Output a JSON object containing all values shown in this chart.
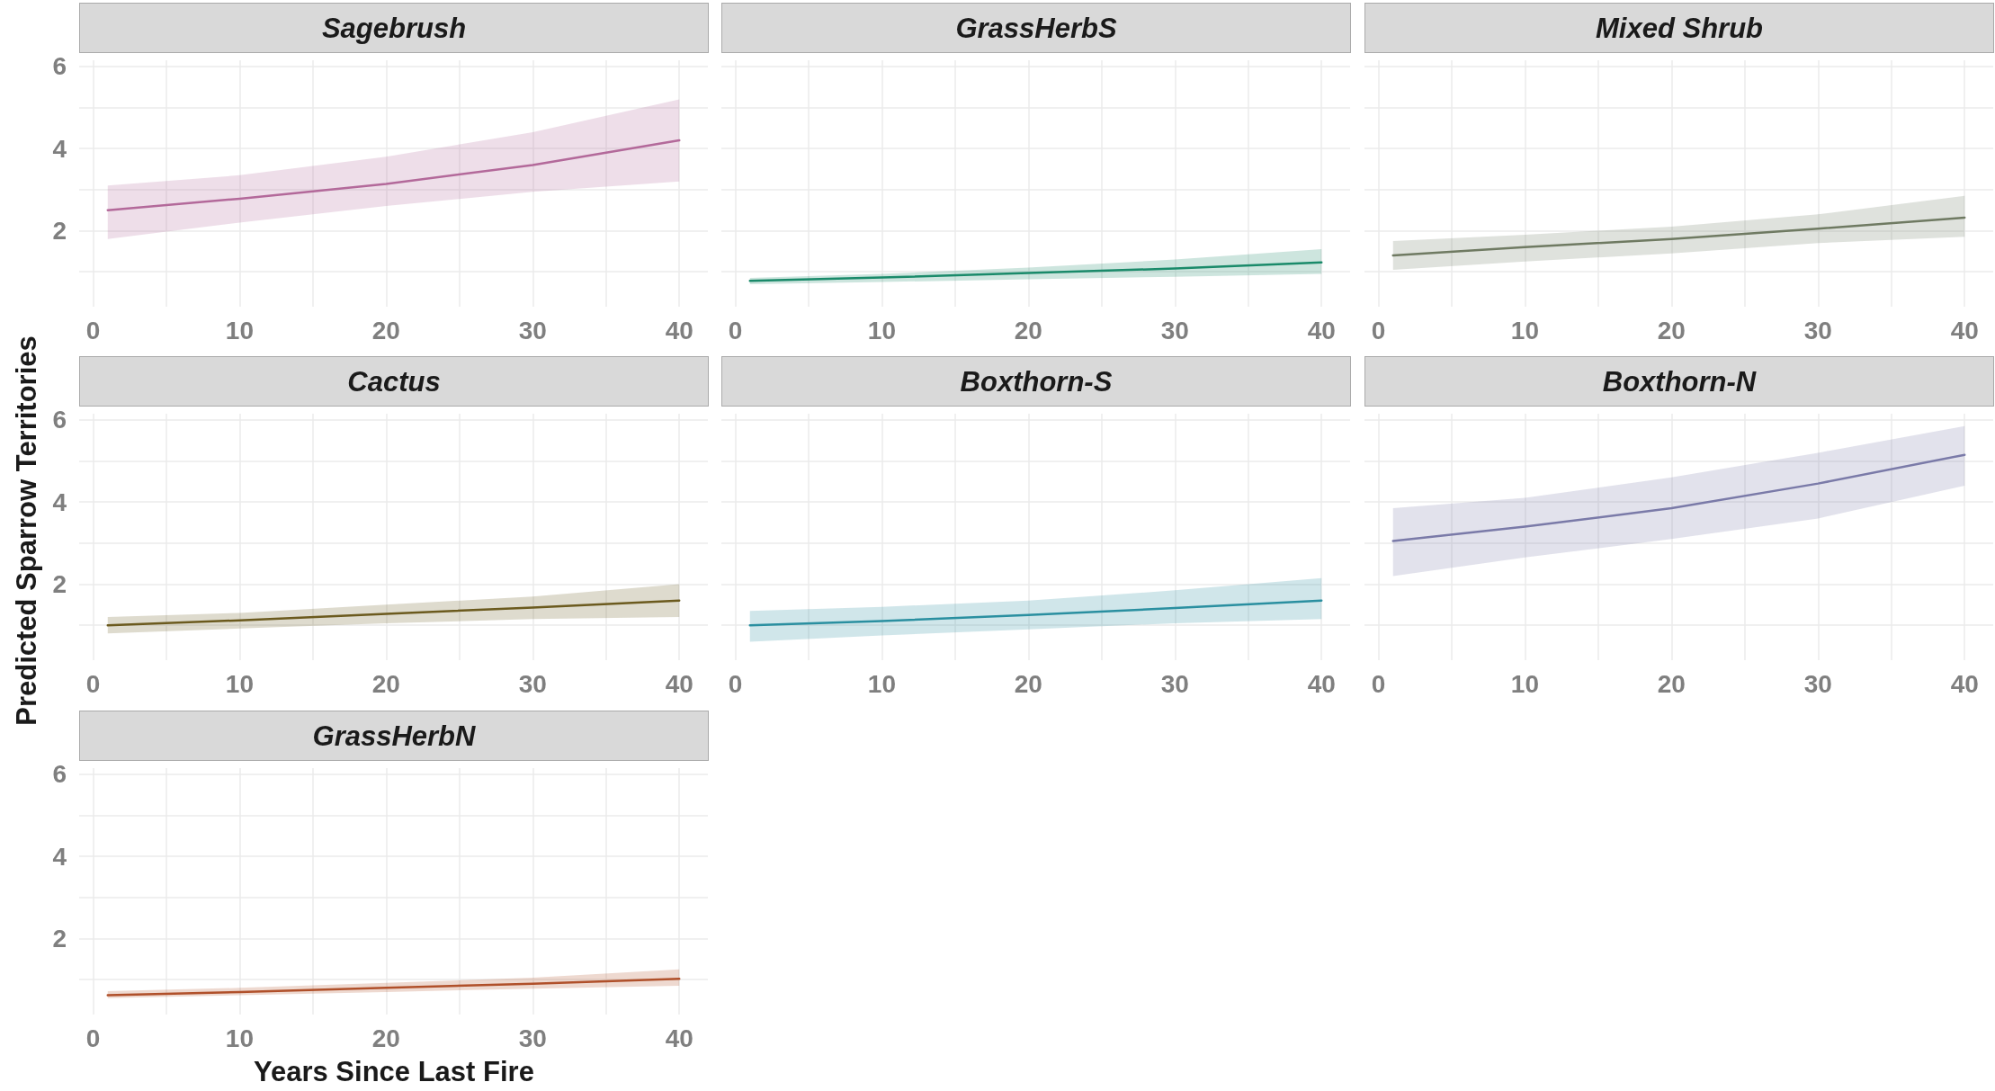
{
  "chart_data": [
    {
      "type": "line",
      "title": "Sagebrush",
      "x": [
        1,
        10,
        20,
        30,
        40
      ],
      "xlim": [
        -0.95,
        41.95
      ],
      "ylim": [
        0.15,
        6.15
      ],
      "xticks": [
        0,
        {
          "value": 5,
          "label": null
        },
        10,
        {
          "value": 15,
          "label": null
        },
        20,
        {
          "value": 25,
          "label": null
        },
        30,
        {
          "value": 35,
          "label": null
        },
        40
      ],
      "yticks": [
        {
          "value": 1,
          "label": null
        },
        2,
        {
          "value": 3,
          "label": null
        },
        4,
        {
          "value": 5,
          "label": null
        },
        6
      ],
      "grid": true,
      "marker": "none",
      "series": [
        {
          "color": "#b3699a",
          "values": [
            2.5,
            2.78,
            3.14,
            3.6,
            4.2
          ],
          "lower": [
            1.8,
            2.2,
            2.6,
            2.95,
            3.2
          ],
          "upper": [
            3.1,
            3.35,
            3.8,
            4.4,
            5.2
          ]
        }
      ]
    },
    {
      "type": "line",
      "title": "GrassHerbS",
      "x": [
        1,
        10,
        20,
        30,
        40
      ],
      "xlim": [
        -0.95,
        41.95
      ],
      "ylim": [
        0.15,
        6.15
      ],
      "xticks": [
        0,
        {
          "value": 5,
          "label": null
        },
        10,
        {
          "value": 15,
          "label": null
        },
        20,
        {
          "value": 25,
          "label": null
        },
        30,
        {
          "value": 35,
          "label": null
        },
        40
      ],
      "yticks": [
        {
          "value": 1,
          "label": null
        },
        2,
        {
          "value": 3,
          "label": null
        },
        4,
        {
          "value": 5,
          "label": null
        },
        6
      ],
      "grid": true,
      "marker": "none",
      "tick_labels": "x",
      "series": [
        {
          "color": "#1a8a6a",
          "values": [
            0.78,
            0.86,
            0.97,
            1.08,
            1.23
          ],
          "lower": [
            0.7,
            0.75,
            0.82,
            0.88,
            0.95
          ],
          "upper": [
            0.85,
            0.95,
            1.1,
            1.3,
            1.55
          ]
        }
      ]
    },
    {
      "type": "line",
      "title": "Mixed Shrub",
      "x": [
        1,
        10,
        20,
        30,
        40
      ],
      "xlim": [
        -0.95,
        41.95
      ],
      "ylim": [
        0.15,
        6.15
      ],
      "xticks": [
        0,
        {
          "value": 5,
          "label": null
        },
        10,
        {
          "value": 15,
          "label": null
        },
        20,
        {
          "value": 25,
          "label": null
        },
        30,
        {
          "value": 35,
          "label": null
        },
        40
      ],
      "yticks": [
        {
          "value": 1,
          "label": null
        },
        2,
        {
          "value": 3,
          "label": null
        },
        4,
        {
          "value": 5,
          "label": null
        },
        6
      ],
      "grid": true,
      "marker": "none",
      "tick_labels": "x",
      "series": [
        {
          "color": "#6f7a62",
          "values": [
            1.4,
            1.6,
            1.8,
            2.05,
            2.32
          ],
          "lower": [
            1.05,
            1.25,
            1.45,
            1.7,
            1.85
          ],
          "upper": [
            1.75,
            1.9,
            2.1,
            2.4,
            2.85
          ]
        }
      ]
    },
    {
      "type": "line",
      "title": "Cactus",
      "ylabel": "Predicted Sparrow Territories",
      "x": [
        1,
        10,
        20,
        30,
        40
      ],
      "xlim": [
        -0.95,
        41.95
      ],
      "ylim": [
        0.15,
        6.15
      ],
      "xticks": [
        0,
        {
          "value": 5,
          "label": null
        },
        10,
        {
          "value": 15,
          "label": null
        },
        20,
        {
          "value": 25,
          "label": null
        },
        30,
        {
          "value": 35,
          "label": null
        },
        40
      ],
      "yticks": [
        {
          "value": 1,
          "label": null
        },
        2,
        {
          "value": 3,
          "label": null
        },
        4,
        {
          "value": 5,
          "label": null
        },
        6
      ],
      "grid": true,
      "marker": "none",
      "series": [
        {
          "color": "#6b5a1e",
          "values": [
            1.0,
            1.12,
            1.28,
            1.43,
            1.6
          ],
          "lower": [
            0.8,
            0.92,
            1.05,
            1.15,
            1.2
          ],
          "upper": [
            1.2,
            1.3,
            1.5,
            1.7,
            2.0
          ]
        }
      ]
    },
    {
      "type": "line",
      "title": "Boxthorn-S",
      "x": [
        1,
        10,
        20,
        30,
        40
      ],
      "xlim": [
        -0.95,
        41.95
      ],
      "ylim": [
        0.15,
        6.15
      ],
      "xticks": [
        0,
        {
          "value": 5,
          "label": null
        },
        10,
        {
          "value": 15,
          "label": null
        },
        20,
        {
          "value": 25,
          "label": null
        },
        30,
        {
          "value": 35,
          "label": null
        },
        40
      ],
      "yticks": [
        {
          "value": 1,
          "label": null
        },
        2,
        {
          "value": 3,
          "label": null
        },
        4,
        {
          "value": 5,
          "label": null
        },
        6
      ],
      "grid": true,
      "marker": "none",
      "tick_labels": "x",
      "series": [
        {
          "color": "#2a8fa0",
          "values": [
            1.0,
            1.1,
            1.25,
            1.42,
            1.6
          ],
          "lower": [
            0.6,
            0.75,
            0.9,
            1.05,
            1.15
          ],
          "upper": [
            1.35,
            1.45,
            1.6,
            1.85,
            2.15
          ]
        }
      ]
    },
    {
      "type": "line",
      "title": "Boxthorn-N",
      "x": [
        1,
        10,
        20,
        30,
        40
      ],
      "xlim": [
        -0.95,
        41.95
      ],
      "ylim": [
        0.15,
        6.15
      ],
      "xticks": [
        0,
        {
          "value": 5,
          "label": null
        },
        10,
        {
          "value": 15,
          "label": null
        },
        20,
        {
          "value": 25,
          "label": null
        },
        30,
        {
          "value": 35,
          "label": null
        },
        40
      ],
      "yticks": [
        {
          "value": 1,
          "label": null
        },
        2,
        {
          "value": 3,
          "label": null
        },
        4,
        {
          "value": 5,
          "label": null
        },
        6
      ],
      "grid": true,
      "marker": "none",
      "tick_labels": "x",
      "series": [
        {
          "color": "#7a7aa8",
          "values": [
            3.05,
            3.4,
            3.85,
            4.45,
            5.15
          ],
          "lower": [
            2.2,
            2.65,
            3.1,
            3.6,
            4.4
          ],
          "upper": [
            3.85,
            4.1,
            4.6,
            5.2,
            5.85
          ]
        }
      ]
    },
    {
      "type": "line",
      "title": "GrassHerbN",
      "xlabel": "Years Since Last Fire",
      "x": [
        1,
        10,
        20,
        30,
        40
      ],
      "xlim": [
        -0.95,
        41.95
      ],
      "ylim": [
        0.15,
        6.15
      ],
      "xticks": [
        0,
        {
          "value": 5,
          "label": null
        },
        10,
        {
          "value": 15,
          "label": null
        },
        20,
        {
          "value": 25,
          "label": null
        },
        30,
        {
          "value": 35,
          "label": null
        },
        40
      ],
      "yticks": [
        {
          "value": 1,
          "label": null
        },
        2,
        {
          "value": 3,
          "label": null
        },
        4,
        {
          "value": 5,
          "label": null
        },
        6
      ],
      "grid": true,
      "marker": "none",
      "series": [
        {
          "color": "#b0502a",
          "values": [
            0.62,
            0.7,
            0.8,
            0.9,
            1.02
          ],
          "lower": [
            0.55,
            0.62,
            0.7,
            0.78,
            0.85
          ],
          "upper": [
            0.72,
            0.8,
            0.92,
            1.05,
            1.25
          ]
        }
      ]
    }
  ]
}
